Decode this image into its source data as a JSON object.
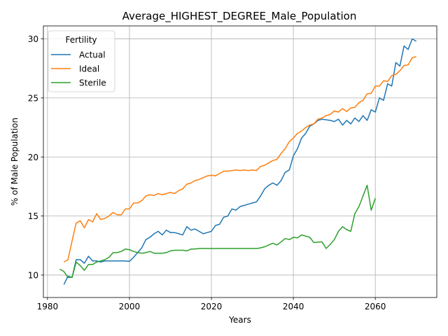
{
  "chart_data": {
    "type": "line",
    "title": "Average_HIGHEST_DEGREE_Male_Population",
    "xlabel": "Years",
    "ylabel": "% of Male Population",
    "xlim": [
      1978.9,
      1975.0
    ],
    "ylim": [
      8.1,
      31.1
    ],
    "xticks": [
      1980,
      2000,
      2020,
      2040,
      2060
    ],
    "yticks": [
      10,
      15,
      20,
      25,
      30
    ],
    "grid": true,
    "legend": {
      "title": "Fertility",
      "placement": "top-left"
    },
    "series": [
      {
        "name": "Actual",
        "color": "#1f77b4",
        "x": [
          1984,
          1985,
          1986,
          1987,
          1988,
          1989,
          1990,
          1991,
          1992,
          1993,
          1994,
          1995,
          1996,
          1997,
          1998,
          1999,
          2000,
          2001,
          2002,
          2003,
          2004,
          2005,
          2006,
          2007,
          2008,
          2009,
          2010,
          2011,
          2012,
          2013,
          2014,
          2015,
          2016,
          2017,
          2018,
          2019,
          2020,
          2021,
          2022,
          2023,
          2024,
          2025,
          2026,
          2027,
          2028,
          2029,
          2030,
          2031,
          2032,
          2033,
          2034,
          2035,
          2036,
          2037,
          2038,
          2039,
          2040,
          2041,
          2042,
          2043,
          2044,
          2045,
          2046,
          2047,
          2048,
          2049,
          2050,
          2051,
          2052,
          2053,
          2054,
          2055,
          2056,
          2057,
          2058,
          2059,
          2060,
          2061,
          2062,
          2063,
          2064,
          2065,
          2066,
          2067,
          2068,
          2069,
          2070
        ],
        "y": [
          9.2,
          9.9,
          9.8,
          11.3,
          11.3,
          11.0,
          11.6,
          11.2,
          11.2,
          11.1,
          11.2,
          11.2,
          11.2,
          11.2,
          11.2,
          11.2,
          11.15,
          11.5,
          11.9,
          12.3,
          13.0,
          13.2,
          13.5,
          13.7,
          13.4,
          13.8,
          13.6,
          13.6,
          13.5,
          13.4,
          14.1,
          13.8,
          13.9,
          13.7,
          13.5,
          13.6,
          13.7,
          14.2,
          14.3,
          14.9,
          15.0,
          15.6,
          15.5,
          15.8,
          15.9,
          16.0,
          16.1,
          16.2,
          16.7,
          17.3,
          17.6,
          17.8,
          17.6,
          18.0,
          18.7,
          18.9,
          20.1,
          20.7,
          21.6,
          22.0,
          22.6,
          22.8,
          23.1,
          23.2,
          23.15,
          23.1,
          23.0,
          23.2,
          22.7,
          23.1,
          22.8,
          23.3,
          23.0,
          23.5,
          23.1,
          24.0,
          23.8,
          25.0,
          24.8,
          26.2,
          26.0,
          28.0,
          27.7,
          29.4,
          29.1,
          30.0,
          29.8
        ]
      },
      {
        "name": "Ideal",
        "color": "#ff7f0e",
        "x": [
          1984,
          1985,
          1986,
          1987,
          1988,
          1989,
          1990,
          1991,
          1992,
          1993,
          1994,
          1995,
          1996,
          1997,
          1998,
          1999,
          2000,
          2001,
          2002,
          2003,
          2004,
          2005,
          2006,
          2007,
          2008,
          2009,
          2010,
          2011,
          2012,
          2013,
          2014,
          2015,
          2016,
          2017,
          2018,
          2019,
          2020,
          2021,
          2022,
          2023,
          2024,
          2025,
          2026,
          2027,
          2028,
          2029,
          2030,
          2031,
          2032,
          2033,
          2034,
          2035,
          2036,
          2037,
          2038,
          2039,
          2040,
          2041,
          2042,
          2043,
          2044,
          2045,
          2046,
          2047,
          2048,
          2049,
          2050,
          2051,
          2052,
          2053,
          2054,
          2055,
          2056,
          2057,
          2058,
          2059,
          2060,
          2061,
          2062,
          2063,
          2064,
          2065,
          2066,
          2067,
          2068,
          2069,
          2070
        ],
        "y": [
          11.1,
          11.3,
          12.9,
          14.4,
          14.6,
          14.0,
          14.7,
          14.5,
          15.2,
          14.7,
          14.8,
          15.0,
          15.3,
          15.1,
          15.1,
          15.6,
          15.6,
          16.1,
          16.1,
          16.3,
          16.7,
          16.8,
          16.75,
          16.9,
          16.8,
          16.9,
          17.0,
          16.9,
          17.15,
          17.3,
          17.7,
          17.8,
          18.0,
          18.1,
          18.25,
          18.4,
          18.45,
          18.4,
          18.6,
          18.8,
          18.8,
          18.85,
          18.9,
          18.85,
          18.9,
          18.85,
          18.9,
          18.85,
          19.2,
          19.3,
          19.5,
          19.7,
          19.8,
          20.3,
          20.7,
          21.3,
          21.6,
          22.0,
          22.2,
          22.5,
          22.7,
          22.8,
          23.2,
          23.3,
          23.5,
          23.6,
          23.9,
          23.8,
          24.1,
          23.85,
          24.15,
          24.2,
          24.6,
          24.8,
          25.35,
          25.4,
          26.0,
          26.0,
          26.45,
          26.4,
          26.9,
          27.0,
          27.3,
          27.75,
          27.8,
          28.4,
          28.5
        ]
      },
      {
        "name": "Sterile",
        "color": "#2ca02c",
        "x": [
          1983,
          1984,
          1985,
          1986,
          1987,
          1988,
          1989,
          1990,
          1991,
          1992,
          1993,
          1994,
          1995,
          1996,
          1997,
          1998,
          1999,
          2000,
          2001,
          2002,
          2003,
          2004,
          2005,
          2006,
          2007,
          2008,
          2009,
          2010,
          2011,
          2012,
          2013,
          2014,
          2015,
          2016,
          2017,
          2018,
          2019,
          2020,
          2021,
          2022,
          2023,
          2024,
          2025,
          2026,
          2027,
          2028,
          2029,
          2030,
          2031,
          2032,
          2033,
          2034,
          2035,
          2036,
          2037,
          2038,
          2039,
          2040,
          2041,
          2042,
          2043,
          2044,
          2045,
          2046,
          2047,
          2048,
          2049,
          2050,
          2051,
          2052,
          2053,
          2054,
          2055,
          2056,
          2057,
          2058,
          2059,
          2060
        ],
        "y": [
          10.5,
          10.3,
          9.8,
          9.8,
          11.1,
          10.8,
          10.4,
          10.9,
          10.9,
          11.1,
          11.2,
          11.3,
          11.5,
          11.9,
          11.9,
          12.0,
          12.2,
          12.15,
          12.0,
          11.9,
          11.85,
          11.9,
          12.0,
          11.85,
          11.85,
          11.85,
          11.9,
          12.05,
          12.1,
          12.1,
          12.1,
          12.05,
          12.2,
          12.2,
          12.25,
          12.25,
          12.25,
          12.25,
          12.25,
          12.25,
          12.25,
          12.25,
          12.25,
          12.25,
          12.25,
          12.25,
          12.25,
          12.25,
          12.25,
          12.3,
          12.4,
          12.55,
          12.7,
          12.55,
          12.8,
          13.1,
          13.0,
          13.2,
          13.15,
          13.4,
          13.3,
          13.2,
          12.75,
          12.8,
          12.8,
          12.25,
          12.6,
          13.0,
          13.7,
          14.1,
          13.85,
          13.7,
          15.2,
          15.8,
          16.7,
          17.6,
          15.5,
          16.5
        ]
      }
    ]
  }
}
